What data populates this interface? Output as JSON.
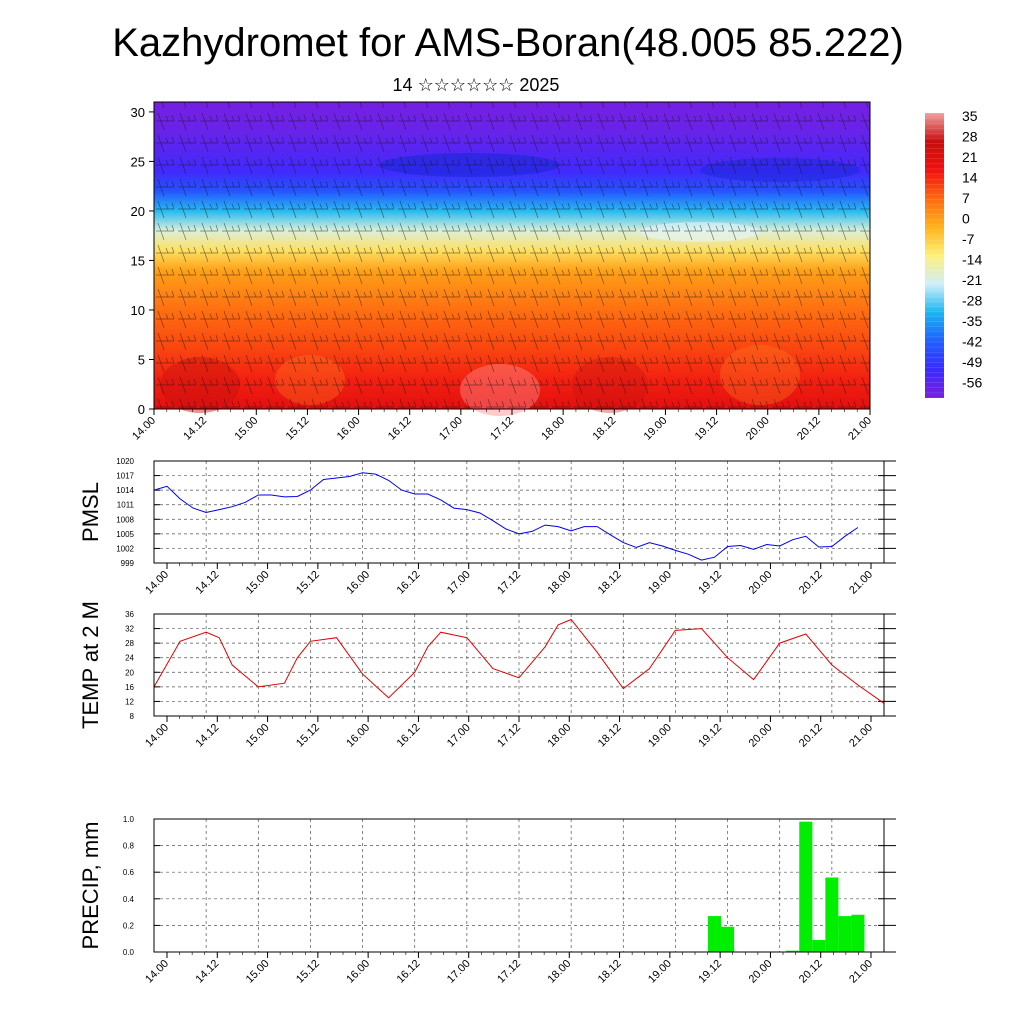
{
  "title": "Kazhydromet for AMS-Boran(48.005 85.222)",
  "subtitle": "14 ☆☆☆☆☆☆ 2025",
  "time_ticks": [
    "14.00",
    "14.12",
    "15.00",
    "15.12",
    "16.00",
    "16.12",
    "17.00",
    "17.12",
    "18.00",
    "18.12",
    "19.00",
    "19.12",
    "20.00",
    "20.12",
    "21.00"
  ],
  "chart_data": [
    {
      "type": "heatmap",
      "title": "",
      "xlabel": "",
      "ylabel": "",
      "y_ticks": [
        0,
        5,
        10,
        15,
        20,
        25,
        30
      ],
      "ylim": [
        0,
        31
      ],
      "colorbar_ticks": [
        35,
        28,
        21,
        14,
        7,
        0,
        -7,
        -14,
        -21,
        -28,
        -35,
        -42,
        -49,
        -56
      ],
      "colorbar_range": [
        -63,
        38
      ],
      "colors": [
        "#7b1fe0",
        "#3a2bff",
        "#1f5fff",
        "#19b6f0",
        "#cfeffa",
        "#ffef7a",
        "#ffb21a",
        "#ff6a10",
        "#f01010",
        "#c80e0e",
        "#f0a0a0"
      ],
      "temperature_profile": {
        "heights": [
          0,
          3,
          6,
          10,
          14,
          16,
          18,
          20,
          22,
          24,
          26,
          28,
          31
        ],
        "values": [
          21,
          16,
          12,
          7,
          0,
          -10,
          -20,
          -32,
          -45,
          -54,
          -57,
          -60,
          -62
        ]
      }
    },
    {
      "type": "line",
      "ylabel": "PMSL",
      "y_ticks": [
        999,
        1002,
        1005,
        1008,
        1011,
        1014,
        1017,
        1020
      ],
      "ylim": [
        999,
        1020
      ],
      "color": "#0000ee",
      "x": [
        0,
        3,
        6,
        9,
        12,
        15,
        18,
        21,
        24,
        27,
        30,
        33,
        36,
        39,
        42,
        45,
        48,
        51,
        54,
        57,
        60,
        63,
        66,
        69,
        72,
        75,
        78,
        81,
        84,
        87,
        90,
        93,
        96,
        99,
        102,
        105,
        108,
        111,
        114,
        117,
        120,
        123,
        126,
        129,
        132,
        135,
        138,
        141,
        144,
        147,
        150,
        153,
        156,
        159,
        162
      ],
      "values": [
        1014,
        1014.8,
        1012.2,
        1010.3,
        1009.4,
        1010,
        1010.6,
        1011.5,
        1013,
        1013,
        1012.6,
        1012.7,
        1014,
        1016.2,
        1016.5,
        1016.8,
        1017.6,
        1017.3,
        1016,
        1014,
        1013.2,
        1013.2,
        1012,
        1010.3,
        1010,
        1009.3,
        1007.7,
        1006,
        1005,
        1005.5,
        1006.8,
        1006.5,
        1005.6,
        1006.5,
        1006.5,
        1004.8,
        1003.2,
        1002.2,
        1003.2,
        1002.5,
        1001.6,
        1000.8,
        999.6,
        1000.2,
        1002.4,
        1002.6,
        1001.8,
        1002.8,
        1002.5,
        1003.8,
        1004.5,
        1002.3,
        1002.4,
        1004.5,
        1006.3
      ]
    },
    {
      "type": "line",
      "ylabel": "TEMP at 2 M",
      "y_ticks": [
        8,
        12,
        16,
        20,
        24,
        28,
        32,
        36
      ],
      "ylim": [
        8,
        36
      ],
      "color": "#e00000",
      "x": [
        0,
        6,
        12,
        15,
        18,
        24,
        30,
        33,
        36,
        42,
        48,
        54,
        60,
        63,
        66,
        72,
        78,
        84,
        90,
        93,
        96,
        102,
        108,
        114,
        120,
        126,
        132,
        138,
        144,
        150,
        156,
        162,
        168
      ],
      "values": [
        16,
        28.5,
        31,
        29.5,
        22,
        16,
        17,
        24,
        28.5,
        29.5,
        19.5,
        13,
        20,
        27,
        31,
        29.5,
        21,
        18.5,
        27,
        33,
        34.5,
        25.5,
        15.5,
        21,
        31.5,
        32,
        24,
        18,
        28,
        30.5,
        22,
        16.5,
        11.5
      ]
    },
    {
      "type": "bar",
      "ylabel": "PRECIP, mm",
      "y_ticks": [
        0.0,
        0.2,
        0.4,
        0.6,
        0.8,
        1.0
      ],
      "ylim": [
        0,
        1.0
      ],
      "color": "#00ee00",
      "x": [
        129,
        132,
        147,
        150,
        153,
        156,
        159,
        162
      ],
      "values": [
        0.27,
        0.19,
        0.01,
        0.98,
        0.09,
        0.56,
        0.27,
        0.28
      ]
    }
  ]
}
